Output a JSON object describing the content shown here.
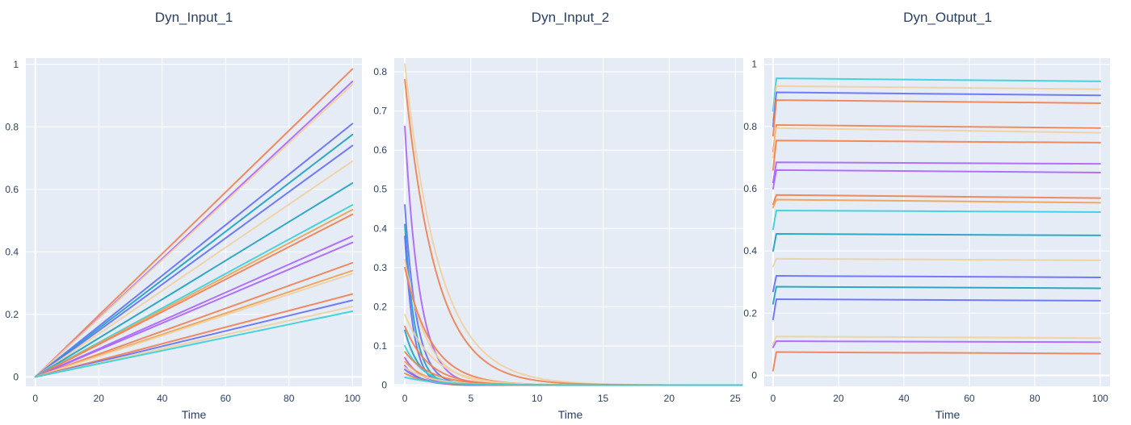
{
  "chart_data": [
    {
      "type": "line",
      "title": "Dyn_Input_1",
      "xlabel": "Time",
      "ylabel": "",
      "xlim": [
        -3,
        103
      ],
      "ylim": [
        -0.03,
        1.02
      ],
      "xticks": [
        0,
        20,
        40,
        60,
        80,
        100
      ],
      "yticks": [
        0,
        0.2,
        0.4,
        0.6,
        0.8,
        1
      ],
      "xtick_labels": [
        "0",
        "20",
        "40",
        "60",
        "80",
        "100"
      ],
      "ytick_labels": [
        "0",
        "0.2",
        "0.4",
        "0.6",
        "0.8",
        "1"
      ],
      "grid": true,
      "legend": false,
      "kind": "linear",
      "series": [
        {
          "color": "#f08050",
          "x": [
            0,
            100
          ],
          "y": [
            0,
            0.985
          ]
        },
        {
          "color": "#ab63fa",
          "x": [
            0,
            100
          ],
          "y": [
            0,
            0.945
          ]
        },
        {
          "color": "#f0d0a0",
          "x": [
            0,
            100
          ],
          "y": [
            0,
            0.935
          ]
        },
        {
          "color": "#636efa",
          "x": [
            0,
            100
          ],
          "y": [
            0,
            0.81
          ]
        },
        {
          "color": "#19a0c0",
          "x": [
            0,
            100
          ],
          "y": [
            0,
            0.775
          ]
        },
        {
          "color": "#636efa",
          "x": [
            0,
            100
          ],
          "y": [
            0,
            0.74
          ]
        },
        {
          "color": "#f0d0a0",
          "x": [
            0,
            100
          ],
          "y": [
            0,
            0.69
          ]
        },
        {
          "color": "#19a0c0",
          "x": [
            0,
            100
          ],
          "y": [
            0,
            0.62
          ]
        },
        {
          "color": "#35d0d8",
          "x": [
            0,
            100
          ],
          "y": [
            0,
            0.55
          ]
        },
        {
          "color": "#f0a050",
          "x": [
            0,
            100
          ],
          "y": [
            0,
            0.535
          ]
        },
        {
          "color": "#f08050",
          "x": [
            0,
            100
          ],
          "y": [
            0,
            0.52
          ]
        },
        {
          "color": "#ab63fa",
          "x": [
            0,
            100
          ],
          "y": [
            0,
            0.45
          ]
        },
        {
          "color": "#ab63fa",
          "x": [
            0,
            100
          ],
          "y": [
            0,
            0.43
          ]
        },
        {
          "color": "#f08050",
          "x": [
            0,
            100
          ],
          "y": [
            0,
            0.365
          ]
        },
        {
          "color": "#f0a050",
          "x": [
            0,
            100
          ],
          "y": [
            0,
            0.34
          ]
        },
        {
          "color": "#f0d0a0",
          "x": [
            0,
            100
          ],
          "y": [
            0,
            0.33
          ]
        },
        {
          "color": "#f08050",
          "x": [
            0,
            100
          ],
          "y": [
            0,
            0.265
          ]
        },
        {
          "color": "#636efa",
          "x": [
            0,
            100
          ],
          "y": [
            0,
            0.245
          ]
        },
        {
          "color": "#f0d0a0",
          "x": [
            0,
            100
          ],
          "y": [
            0,
            0.225
          ]
        },
        {
          "color": "#35d0d8",
          "x": [
            0,
            100
          ],
          "y": [
            0,
            0.21
          ]
        }
      ]
    },
    {
      "type": "line",
      "title": "Dyn_Input_2",
      "xlabel": "Time",
      "ylabel": "",
      "xlim": [
        -0.8,
        25.6
      ],
      "ylim": [
        -0.003,
        0.835
      ],
      "xticks": [
        0,
        5,
        10,
        15,
        20,
        25
      ],
      "yticks": [
        0,
        0.1,
        0.2,
        0.3,
        0.4,
        0.5,
        0.6,
        0.7,
        0.8
      ],
      "xtick_labels": [
        "0",
        "5",
        "10",
        "15",
        "20",
        "25"
      ],
      "ytick_labels": [
        "0",
        "0.1",
        "0.2",
        "0.3",
        "0.4",
        "0.5",
        "0.6",
        "0.7",
        "0.8"
      ],
      "grid": true,
      "legend": false,
      "kind": "decay",
      "x_end": 25.6,
      "series": [
        {
          "color": "#f0d0a0",
          "y0": 0.82,
          "rate": 0.38
        },
        {
          "color": "#f08050",
          "y0": 0.78,
          "rate": 0.42
        },
        {
          "color": "#ab63fa",
          "y0": 0.66,
          "rate": 0.9
        },
        {
          "color": "#636efa",
          "y0": 0.46,
          "rate": 1.1
        },
        {
          "color": "#19a0c0",
          "y0": 0.41,
          "rate": 1.3
        },
        {
          "color": "#636efa",
          "y0": 0.38,
          "rate": 1.5
        },
        {
          "color": "#f0d0a0",
          "y0": 0.32,
          "rate": 0.6
        },
        {
          "color": "#f08050",
          "y0": 0.3,
          "rate": 0.5
        },
        {
          "color": "#f0d0a0",
          "y0": 0.18,
          "rate": 0.45
        },
        {
          "color": "#f08050",
          "y0": 0.15,
          "rate": 0.55
        },
        {
          "color": "#19a0c0",
          "y0": 0.14,
          "rate": 0.9
        },
        {
          "color": "#35d0d8",
          "y0": 0.1,
          "rate": 0.7
        },
        {
          "color": "#f08050",
          "y0": 0.085,
          "rate": 0.5
        },
        {
          "color": "#ab63fa",
          "y0": 0.07,
          "rate": 0.8
        },
        {
          "color": "#f0a050",
          "y0": 0.06,
          "rate": 0.6
        },
        {
          "color": "#ab63fa",
          "y0": 0.05,
          "rate": 0.9
        },
        {
          "color": "#f0d0a0",
          "y0": 0.045,
          "rate": 0.5
        },
        {
          "color": "#636efa",
          "y0": 0.04,
          "rate": 0.7
        },
        {
          "color": "#f08050",
          "y0": 0.03,
          "rate": 0.6
        },
        {
          "color": "#35d0d8",
          "y0": 0.02,
          "rate": 0.4
        }
      ]
    },
    {
      "type": "line",
      "title": "Dyn_Output_1",
      "xlabel": "Time",
      "ylabel": "",
      "xlim": [
        -2.7,
        103
      ],
      "ylim": [
        -0.035,
        1.02
      ],
      "xticks": [
        0,
        20,
        40,
        60,
        80,
        100
      ],
      "yticks": [
        0,
        0.2,
        0.4,
        0.6,
        0.8,
        1
      ],
      "xtick_labels": [
        "0",
        "20",
        "40",
        "60",
        "80",
        "100"
      ],
      "ytick_labels": [
        "0",
        "0.2",
        "0.4",
        "0.6",
        "0.8",
        "1"
      ],
      "grid": true,
      "legend": false,
      "kind": "step",
      "series": [
        {
          "color": "#35d0d8",
          "y0": 0.85,
          "y1": 0.955,
          "y2": 0.945
        },
        {
          "color": "#f0d0a0",
          "y0": 0.82,
          "y1": 0.93,
          "y2": 0.92
        },
        {
          "color": "#636efa",
          "y0": 0.8,
          "y1": 0.91,
          "y2": 0.9
        },
        {
          "color": "#f08050",
          "y0": 0.77,
          "y1": 0.885,
          "y2": 0.875
        },
        {
          "color": "#f08050",
          "y0": 0.72,
          "y1": 0.805,
          "y2": 0.795
        },
        {
          "color": "#f0d0a0",
          "y0": 0.7,
          "y1": 0.795,
          "y2": 0.78
        },
        {
          "color": "#f08050",
          "y0": 0.66,
          "y1": 0.755,
          "y2": 0.748
        },
        {
          "color": "#ab63fa",
          "y0": 0.62,
          "y1": 0.685,
          "y2": 0.68
        },
        {
          "color": "#ab63fa",
          "y0": 0.6,
          "y1": 0.66,
          "y2": 0.652
        },
        {
          "color": "#f08050",
          "y0": 0.55,
          "y1": 0.58,
          "y2": 0.57
        },
        {
          "color": "#f0a050",
          "y0": 0.54,
          "y1": 0.565,
          "y2": 0.555
        },
        {
          "color": "#35d0d8",
          "y0": 0.47,
          "y1": 0.53,
          "y2": 0.525
        },
        {
          "color": "#19a0c0",
          "y0": 0.4,
          "y1": 0.455,
          "y2": 0.45
        },
        {
          "color": "#f0d0a0",
          "y0": 0.35,
          "y1": 0.375,
          "y2": 0.37
        },
        {
          "color": "#636efa",
          "y0": 0.27,
          "y1": 0.32,
          "y2": 0.315
        },
        {
          "color": "#19a0c0",
          "y0": 0.23,
          "y1": 0.285,
          "y2": 0.28
        },
        {
          "color": "#636efa",
          "y0": 0.18,
          "y1": 0.245,
          "y2": 0.24
        },
        {
          "color": "#f0d0a0",
          "y0": 0.1,
          "y1": 0.125,
          "y2": 0.12
        },
        {
          "color": "#ab63fa",
          "y0": 0.09,
          "y1": 0.11,
          "y2": 0.107
        },
        {
          "color": "#f08050",
          "y0": 0.015,
          "y1": 0.075,
          "y2": 0.07
        }
      ]
    }
  ]
}
